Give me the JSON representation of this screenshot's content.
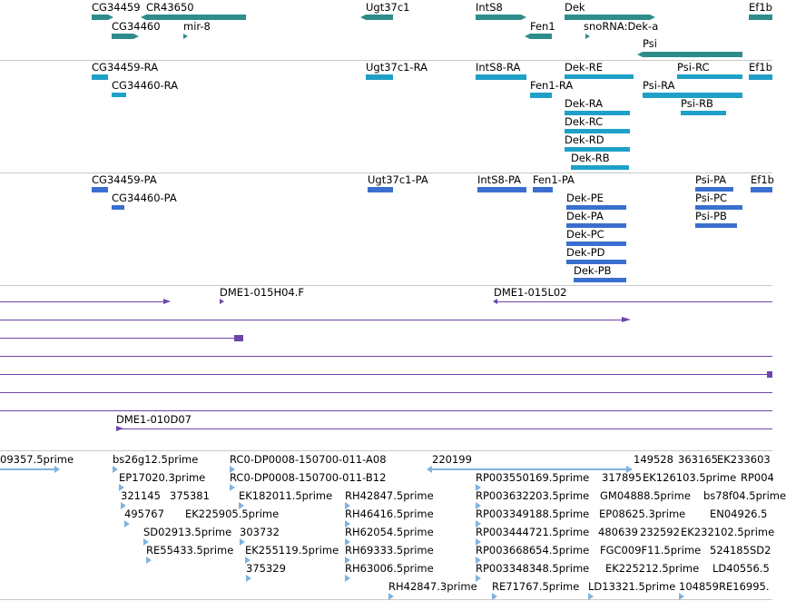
{
  "colors": {
    "gene": "#2f8c8c",
    "transcript": "#1fa0c8",
    "protein": "#3a6fd0",
    "clone": "#6e46a8",
    "est": "#7fb3e0",
    "separator": "#c9c9c9"
  },
  "genes": {
    "cg34459": "CG34459",
    "cr43650": "CR43650",
    "cg34460": "CG34460",
    "mir8": "mir-8",
    "ugt37c1": "Ugt37c1",
    "ints8": "IntS8",
    "fen1": "Fen1",
    "dek": "Dek",
    "snorna": "snoRNA:Dek-a",
    "psi": "Psi",
    "ef1b": "Ef1b"
  },
  "transcripts": {
    "cg34459_ra": "CG34459-RA",
    "cg34460_ra": "CG34460-RA",
    "ugt37c1_ra": "Ugt37c1-RA",
    "ints8_ra": "IntS8-RA",
    "fen1_ra": "Fen1-RA",
    "dek_re": "Dek-RE",
    "dek_ra": "Dek-RA",
    "dek_rc": "Dek-RC",
    "dek_rd": "Dek-RD",
    "dek_rb": "Dek-RB",
    "psi_rc": "Psi-RC",
    "psi_ra": "Psi-RA",
    "psi_rb": "Psi-RB",
    "ef1b": "Ef1b"
  },
  "proteins": {
    "cg34459_pa": "CG34459-PA",
    "cg34460_pa": "CG34460-PA",
    "ugt37c1_pa": "Ugt37c1-PA",
    "ints8_pa": "IntS8-PA",
    "fen1_pa": "Fen1-PA",
    "dek_pe": "Dek-PE",
    "dek_pa": "Dek-PA",
    "dek_pc": "Dek-PC",
    "dek_pd": "Dek-PD",
    "dek_pb": "Dek-PB",
    "psi_pa": "Psi-PA",
    "psi_pc": "Psi-PC",
    "psi_pb": "Psi-PB",
    "ef1b": "Ef1b"
  },
  "clones": {
    "c1": "DME1-015H04.F",
    "c2": "DME1-015L02",
    "c3": "DME1-010D07"
  },
  "ests": [
    "09357.5prime",
    "bs26g12.5prime",
    "RC0-DP0008-150700-011-A08",
    "220199",
    "149528",
    "363165",
    "EK233603",
    "EP17020.3prime",
    "RC0-DP0008-150700-011-B12",
    "RP003550169.5prime",
    "317895",
    "EK126103.5prime",
    "RP004",
    "321145",
    "375381",
    "EK182011.5prime",
    "RH42847.5prime",
    "RP003632203.5prime",
    "GM04888.5prime",
    "bs78f04.5prime",
    "495767",
    "EK225905.5prime",
    "RH46416.5prime",
    "RP003349188.5prime",
    "EP08625.3prime",
    "EN04926.5",
    "SD02913.5prime",
    "303732",
    "RH62054.5prime",
    "RP003444721.5prime",
    "480639",
    "232592",
    "EK232102.5prime",
    "RE55433.5prime",
    "EK255119.5prime",
    "RH69333.5prime",
    "RP003668654.5prime",
    "FGC009F11.5prime",
    "524185",
    "SD2",
    "375329",
    "RH63006.5prime",
    "RP003348348.5prime",
    "EK225212.5prime",
    "LD40556.5",
    "RH42847.3prime",
    "RE71767.5prime",
    "LD13321.5prime",
    "104859",
    "RE16995."
  ]
}
